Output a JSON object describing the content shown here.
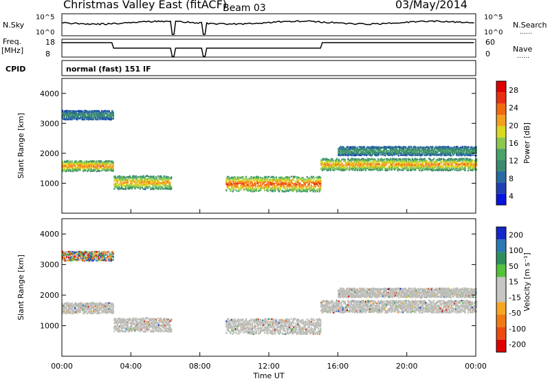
{
  "header": {
    "station": "Christmas Valley East (fitACF)",
    "beam": "Beam 03",
    "date": "03/May/2014"
  },
  "strip": {
    "nsky_label": "N.Sky",
    "nsearch_label": "N.Search",
    "freq_label_1": "Freq.",
    "freq_label_2": "[MHz]",
    "nave_label": "Nave",
    "cpid_label": "CPID",
    "cpid_value": "normal (fast) 151 IF",
    "noise_ticks_left": [
      "10^5",
      "10^0"
    ],
    "noise_ticks_right": [
      "10^5",
      "10^0"
    ],
    "freq_ticks": [
      "18",
      "8"
    ],
    "nave_ticks": [
      "60",
      "0"
    ]
  },
  "colors": {
    "power_scale": [
      "#0a14e0",
      "#1e3fb4",
      "#2a6aa0",
      "#3a8a6e",
      "#4aa36a",
      "#8cc850",
      "#d8d820",
      "#f2a020",
      "#f26a10",
      "#e83010",
      "#e00000"
    ],
    "velocity_scale": [
      "#1428c8",
      "#2a7ab4",
      "#2f8f5a",
      "#54c23a",
      "#c6c6c2",
      "#c6c6c2",
      "#f5a623",
      "#f07a12",
      "#ec4a10",
      "#e00000"
    ],
    "ground_scatter": "#bdbdb8"
  },
  "chart_data": [
    {
      "type": "heatmap",
      "panel": "power",
      "ylabel": "Slant Range [km]",
      "ylim": [
        0,
        4500
      ],
      "yticks": [
        1000,
        2000,
        3000,
        4000
      ],
      "xlim": [
        0,
        24
      ],
      "xticks": [
        "00:00",
        "04:00",
        "08:00",
        "12:00",
        "16:00",
        "20:00",
        "00:00"
      ],
      "colorbar": {
        "label": "Power [dB]",
        "ticks": [
          "4",
          "8",
          "12",
          "16",
          "20",
          "24",
          "28"
        ],
        "range": [
          0,
          30
        ]
      },
      "data_gaps_hours": [
        [
          6.3,
          6.5
        ],
        [
          8.1,
          8.3
        ]
      ],
      "bands": [
        {
          "t": [
            0,
            3
          ],
          "range_center": 1600,
          "range_width": 350,
          "power": 24
        },
        {
          "t": [
            3,
            6.3
          ],
          "range_center": 1050,
          "range_width": 450,
          "power": 22
        },
        {
          "t": [
            0,
            3
          ],
          "range_center": 3300,
          "range_width": 300,
          "power": 10
        },
        {
          "t": [
            9.5,
            15
          ],
          "range_center": 1000,
          "range_width": 500,
          "power": 26
        },
        {
          "t": [
            15,
            24
          ],
          "range_center": 1650,
          "range_width": 400,
          "power": 23
        },
        {
          "t": [
            16,
            24
          ],
          "range_center": 2100,
          "range_width": 300,
          "power": 12
        }
      ]
    },
    {
      "type": "heatmap",
      "panel": "velocity",
      "ylabel": "Slant Range [km]",
      "xlabel": "Time UT",
      "ylim": [
        0,
        4500
      ],
      "yticks": [
        1000,
        2000,
        3000,
        4000
      ],
      "xlim": [
        0,
        24
      ],
      "xticks": [
        "00:00",
        "04:00",
        "08:00",
        "12:00",
        "16:00",
        "20:00",
        "00:00"
      ],
      "colorbar": {
        "label": "Velocity [m s⁻¹]",
        "ticks": [
          "200",
          "100",
          "50",
          "15",
          "-15",
          "-50",
          "-100",
          "-200"
        ],
        "range": [
          -250,
          250
        ]
      }
    }
  ]
}
